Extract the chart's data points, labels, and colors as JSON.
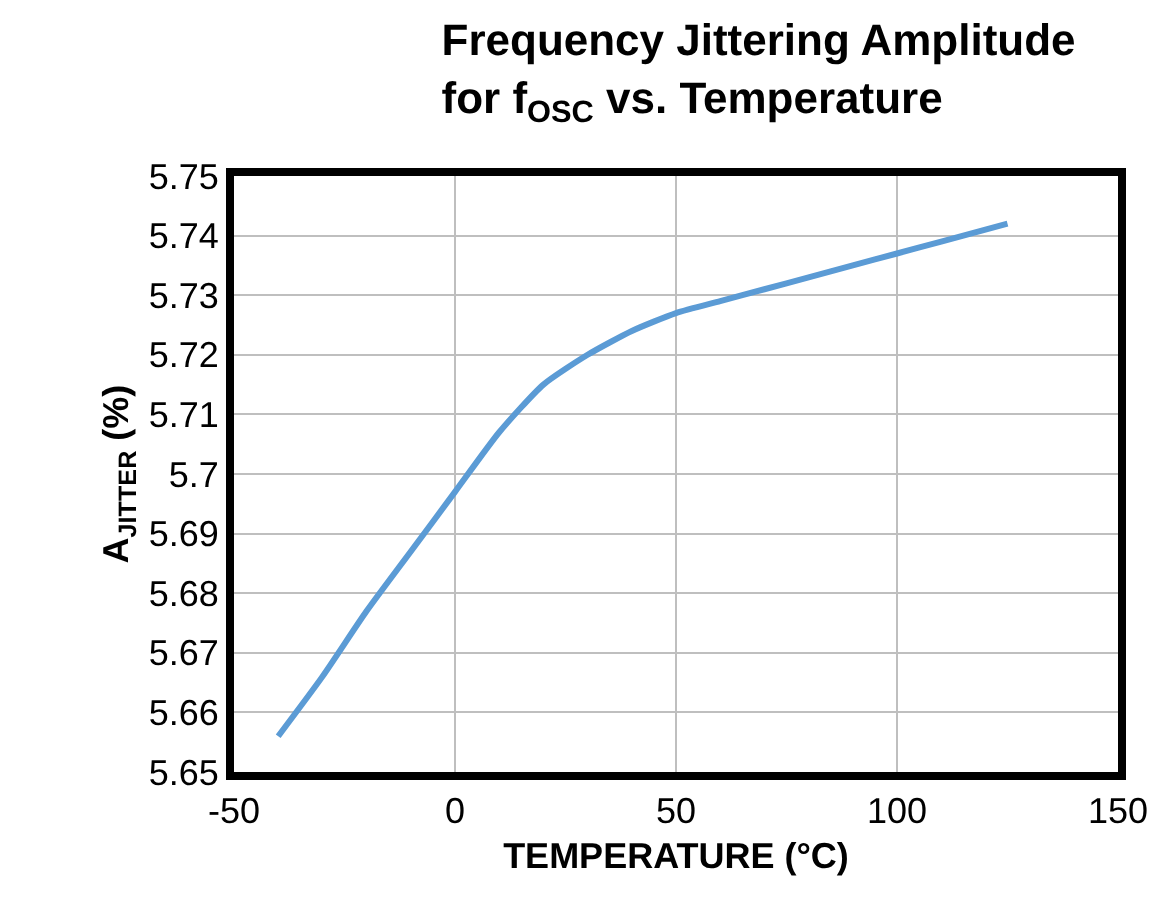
{
  "chart_data": {
    "type": "line",
    "title": "Frequency Jittering Amplitude\nfor f$_{OSC}$ vs. Temperature",
    "xlabel": "TEMPERATURE (°C)",
    "ylabel": "A$_{JITTER}$ (%)",
    "x": [
      -40,
      -30,
      -20,
      -10,
      0,
      10,
      20,
      30,
      40,
      50,
      60,
      70,
      80,
      90,
      100,
      110,
      125
    ],
    "series": [
      {
        "color": "#5b9bd5",
        "values": [
          5.656,
          5.666,
          5.677,
          5.687,
          5.697,
          5.707,
          5.715,
          5.72,
          5.724,
          5.727,
          5.729,
          5.731,
          5.733,
          5.735,
          5.737,
          5.739,
          5.742
        ]
      }
    ],
    "xlim": [
      -50,
      150
    ],
    "xticks": [
      -50,
      0,
      50,
      100,
      150
    ],
    "ylim": [
      5.65,
      5.75
    ],
    "yticks": [
      5.65,
      5.66,
      5.67,
      5.68,
      5.69,
      5.7,
      5.71,
      5.72,
      5.73,
      5.74,
      5.75
    ],
    "grid": true,
    "marker": "none",
    "line_style": "solid"
  }
}
